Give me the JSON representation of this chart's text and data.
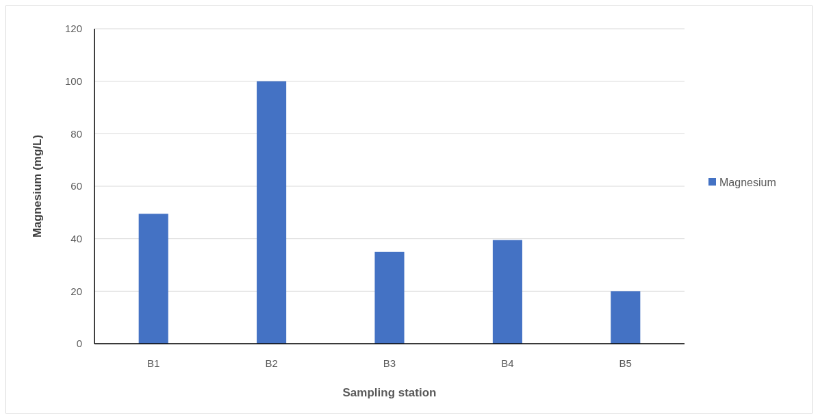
{
  "chart_data": {
    "type": "bar",
    "xlabel": "Sampling station",
    "ylabel": "Magnesium  (mg/L)",
    "categories": [
      "B1",
      "B2",
      "B3",
      "B4",
      "B5"
    ],
    "series": [
      {
        "name": "Magnesium",
        "color": "#4472c4",
        "values": [
          49.5,
          100,
          35,
          39.5,
          20
        ]
      }
    ],
    "ylim": [
      0,
      120
    ],
    "yticks": [
      0,
      20,
      40,
      60,
      80,
      100,
      120
    ],
    "grid": "y",
    "legend": "right"
  }
}
